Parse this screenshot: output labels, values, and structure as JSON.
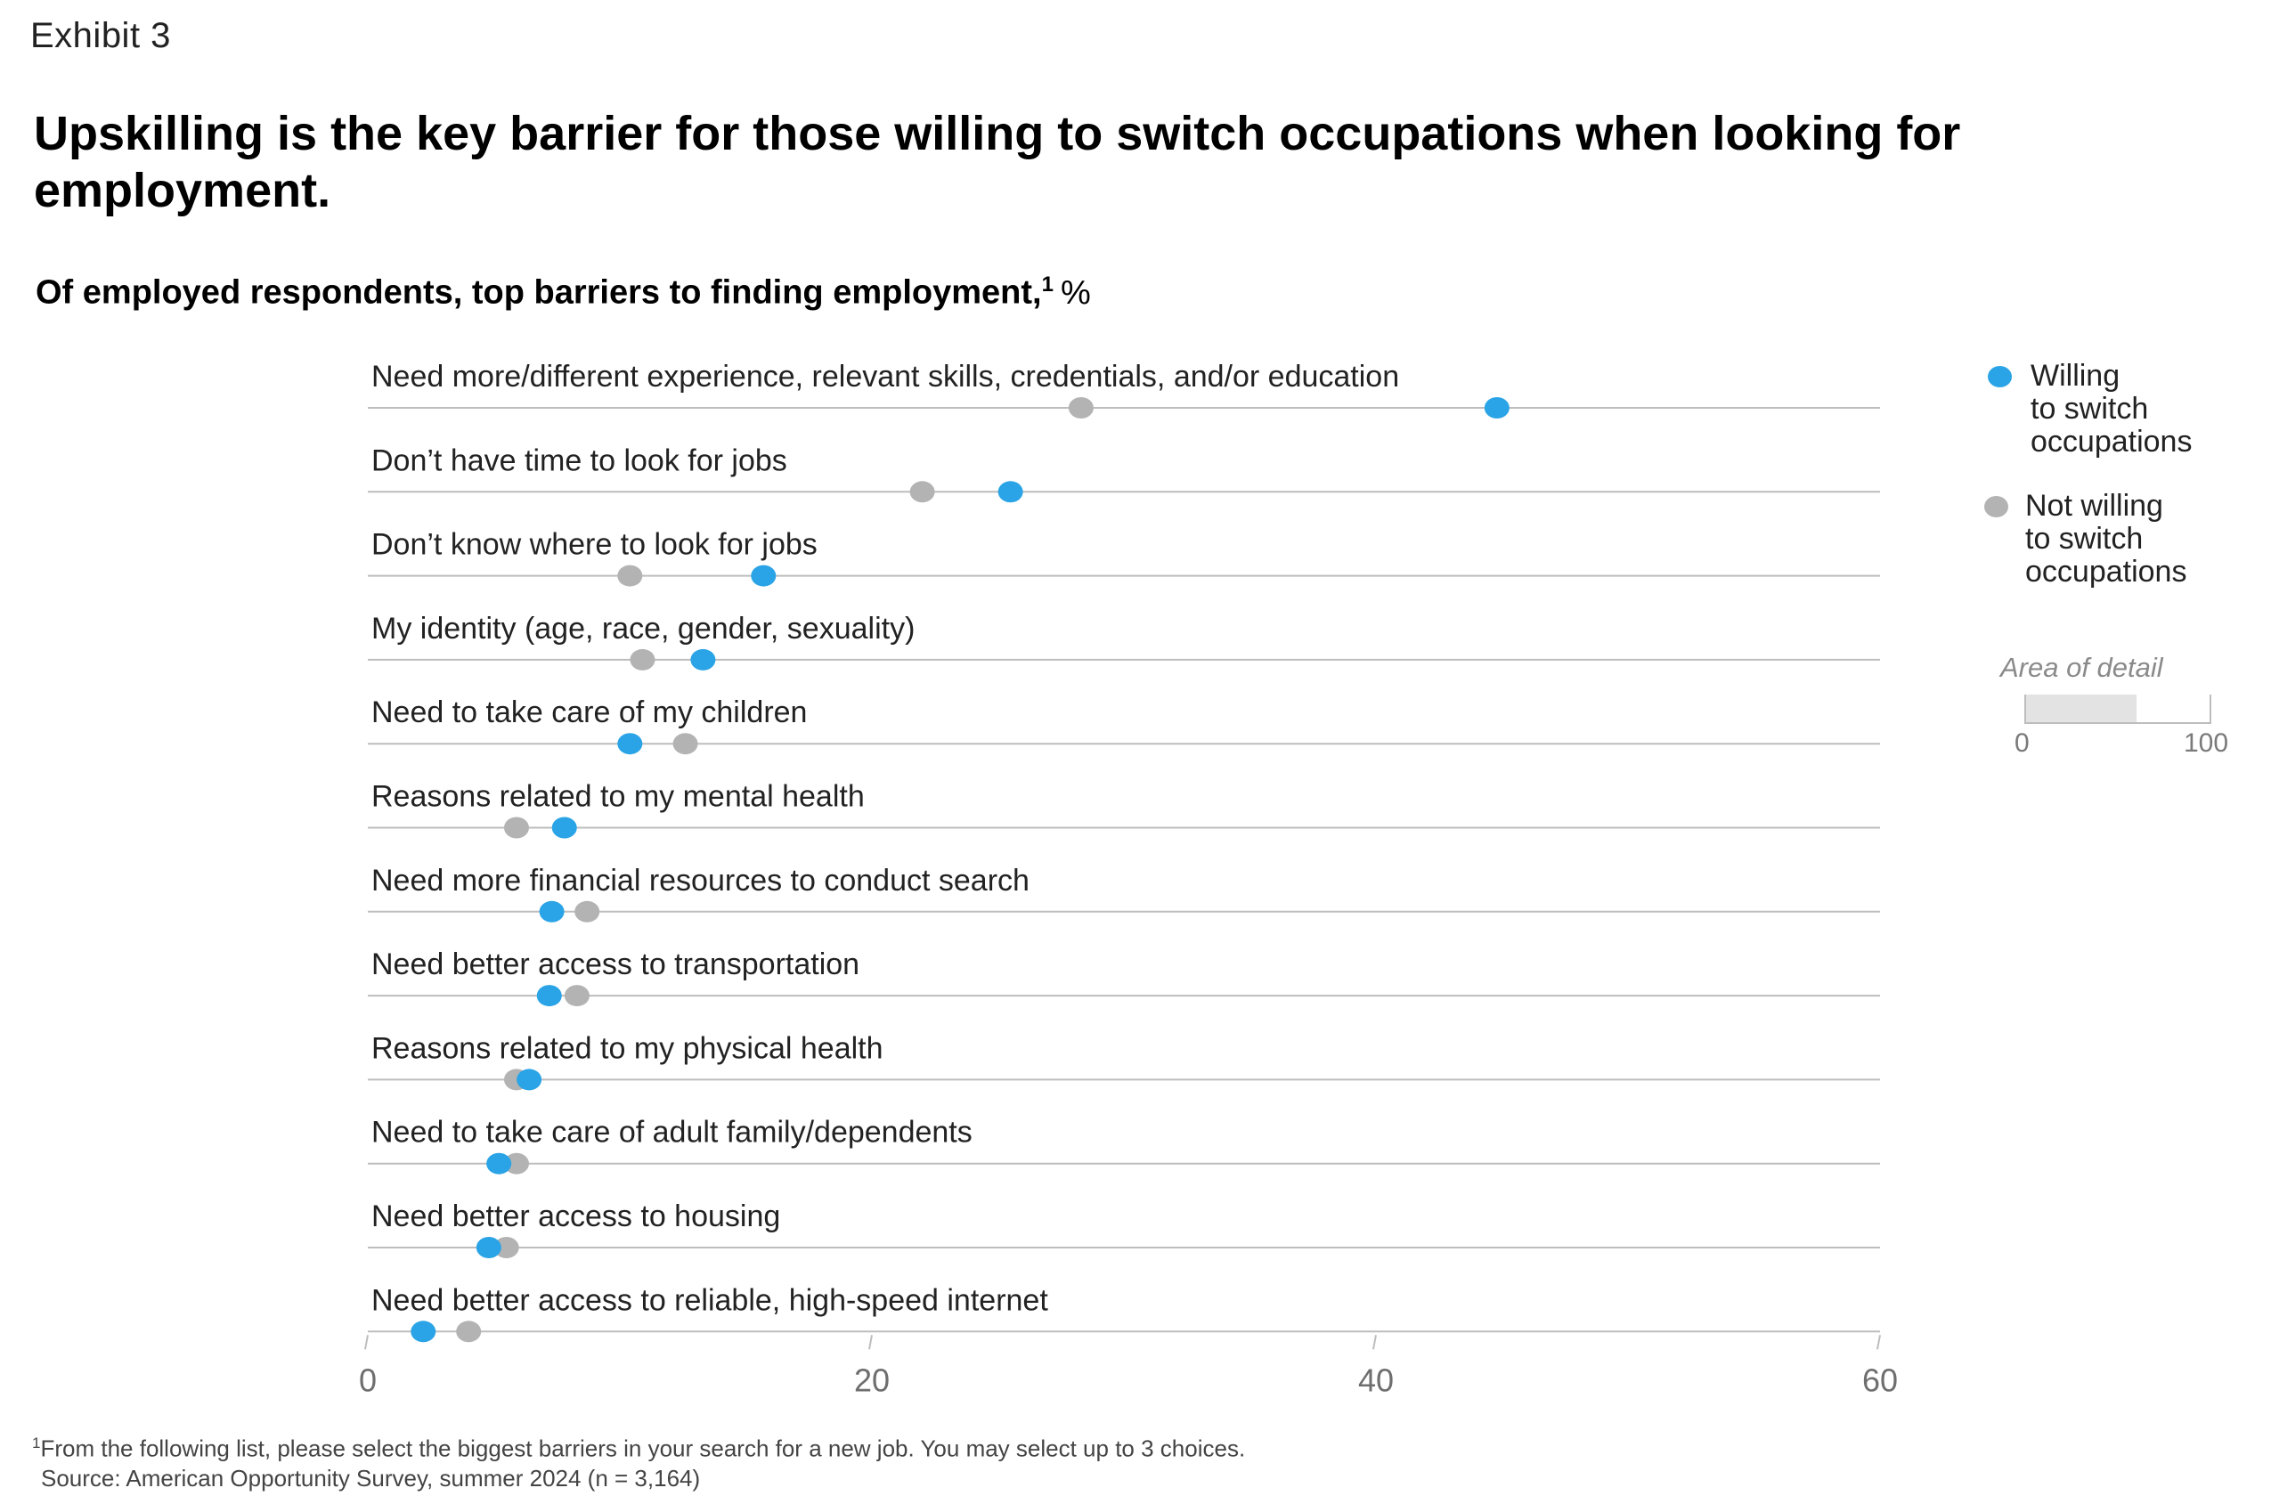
{
  "header": {
    "exhibit": "Exhibit 3",
    "headline": "Upskilling is the key barrier for those willing to switch occupations when looking for employment.",
    "subtitle": "Of employed respondents, top barriers to finding employment,",
    "subtitle_footnote_marker": "1",
    "subtitle_unit": "%"
  },
  "chart_data": {
    "type": "scatter",
    "orientation": "dot-plot",
    "xlim": [
      0,
      60
    ],
    "xticks": [
      0,
      20,
      40,
      60
    ],
    "tick_labels": [
      "0",
      "20",
      "40",
      "60"
    ],
    "grid": false,
    "legend_position": "top-right",
    "categories": [
      "Need more/different experience, relevant skills, credentials, and/or education",
      "Don’t have time to look for jobs",
      "Don’t know where to look for jobs",
      "My identity (age, race, gender, sexuality)",
      "Need to take care of my children",
      "Reasons related to my mental health",
      "Need more financial resources to conduct search",
      "Need better access to transportation",
      "Reasons related to my physical health",
      "Need to take care of adult family/dependents",
      "Need better access to housing",
      "Need better access to reliable, high-speed internet"
    ],
    "series": [
      {
        "name": "Willing to switch occupations",
        "color": "#2aa4e6",
        "values": [
          44.8,
          25.5,
          15.7,
          13.3,
          10.4,
          7.8,
          7.3,
          7.2,
          6.4,
          5.2,
          4.8,
          2.2
        ]
      },
      {
        "name": "Not willing to switch occupations",
        "color": "#b3b3b3",
        "values": [
          28.3,
          22.0,
          10.4,
          10.9,
          12.6,
          5.9,
          8.7,
          8.3,
          5.9,
          5.9,
          5.5,
          4.0
        ]
      }
    ]
  },
  "legend": {
    "willing": {
      "label": "Willing\nto switch\noccupations",
      "color": "#2aa4e6"
    },
    "not_willing": {
      "label": "Not willing\nto switch\noccupations",
      "color": "#b3b3b3"
    }
  },
  "area_of_detail": {
    "title": "Area of detail",
    "min_label": "0",
    "max_label": "100",
    "detail_fraction": 0.6
  },
  "footnote": {
    "marker": "1",
    "text": "From the following list, please select the biggest barriers in your search for a new job. You may select up to 3 choices.",
    "source": "Source: American Opportunity Survey, summer 2024 (n = 3,164)"
  }
}
